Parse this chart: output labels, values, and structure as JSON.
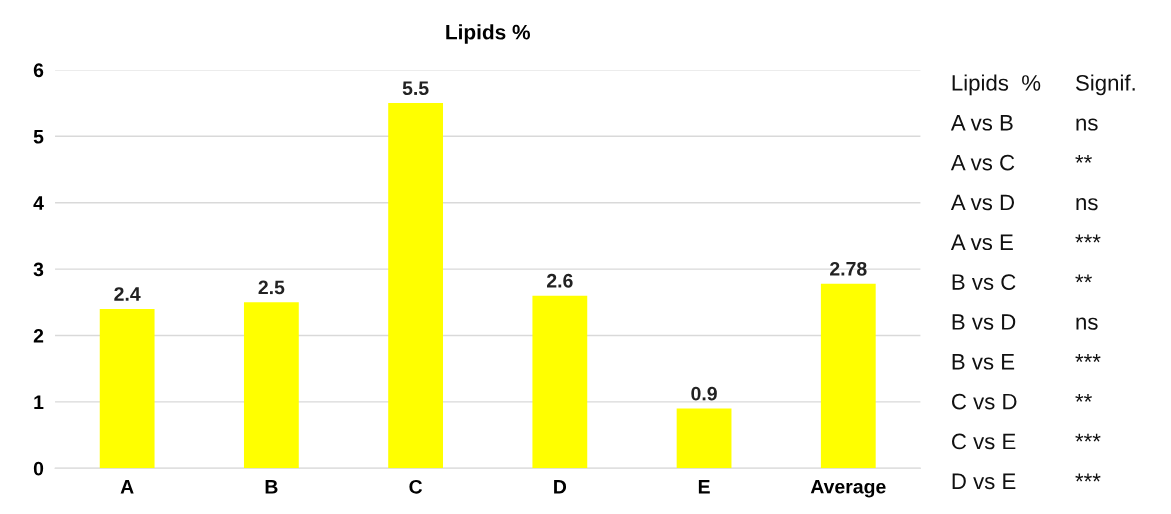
{
  "chart_data": {
    "type": "bar",
    "title": "Lipids %",
    "categories": [
      "A",
      "B",
      "C",
      "D",
      "E",
      "Average"
    ],
    "values": [
      2.4,
      2.5,
      5.5,
      2.6,
      0.9,
      2.78
    ],
    "color": "#ffff00",
    "ylim": [
      0,
      6
    ],
    "yticks": [
      0,
      1,
      2,
      3,
      4,
      5,
      6
    ],
    "grid": "y",
    "data_labels": true,
    "annotations": [
      "Lipids  %",
      "Signif.",
      "A vs B",
      "ns",
      "A vs C",
      "**",
      "A vs D",
      "ns",
      "A vs E",
      "***",
      "B vs C",
      "**",
      "B vs D",
      "ns",
      "B vs E",
      "***",
      "C vs D",
      "**",
      "C vs E",
      "***",
      "D vs E",
      "***"
    ]
  }
}
